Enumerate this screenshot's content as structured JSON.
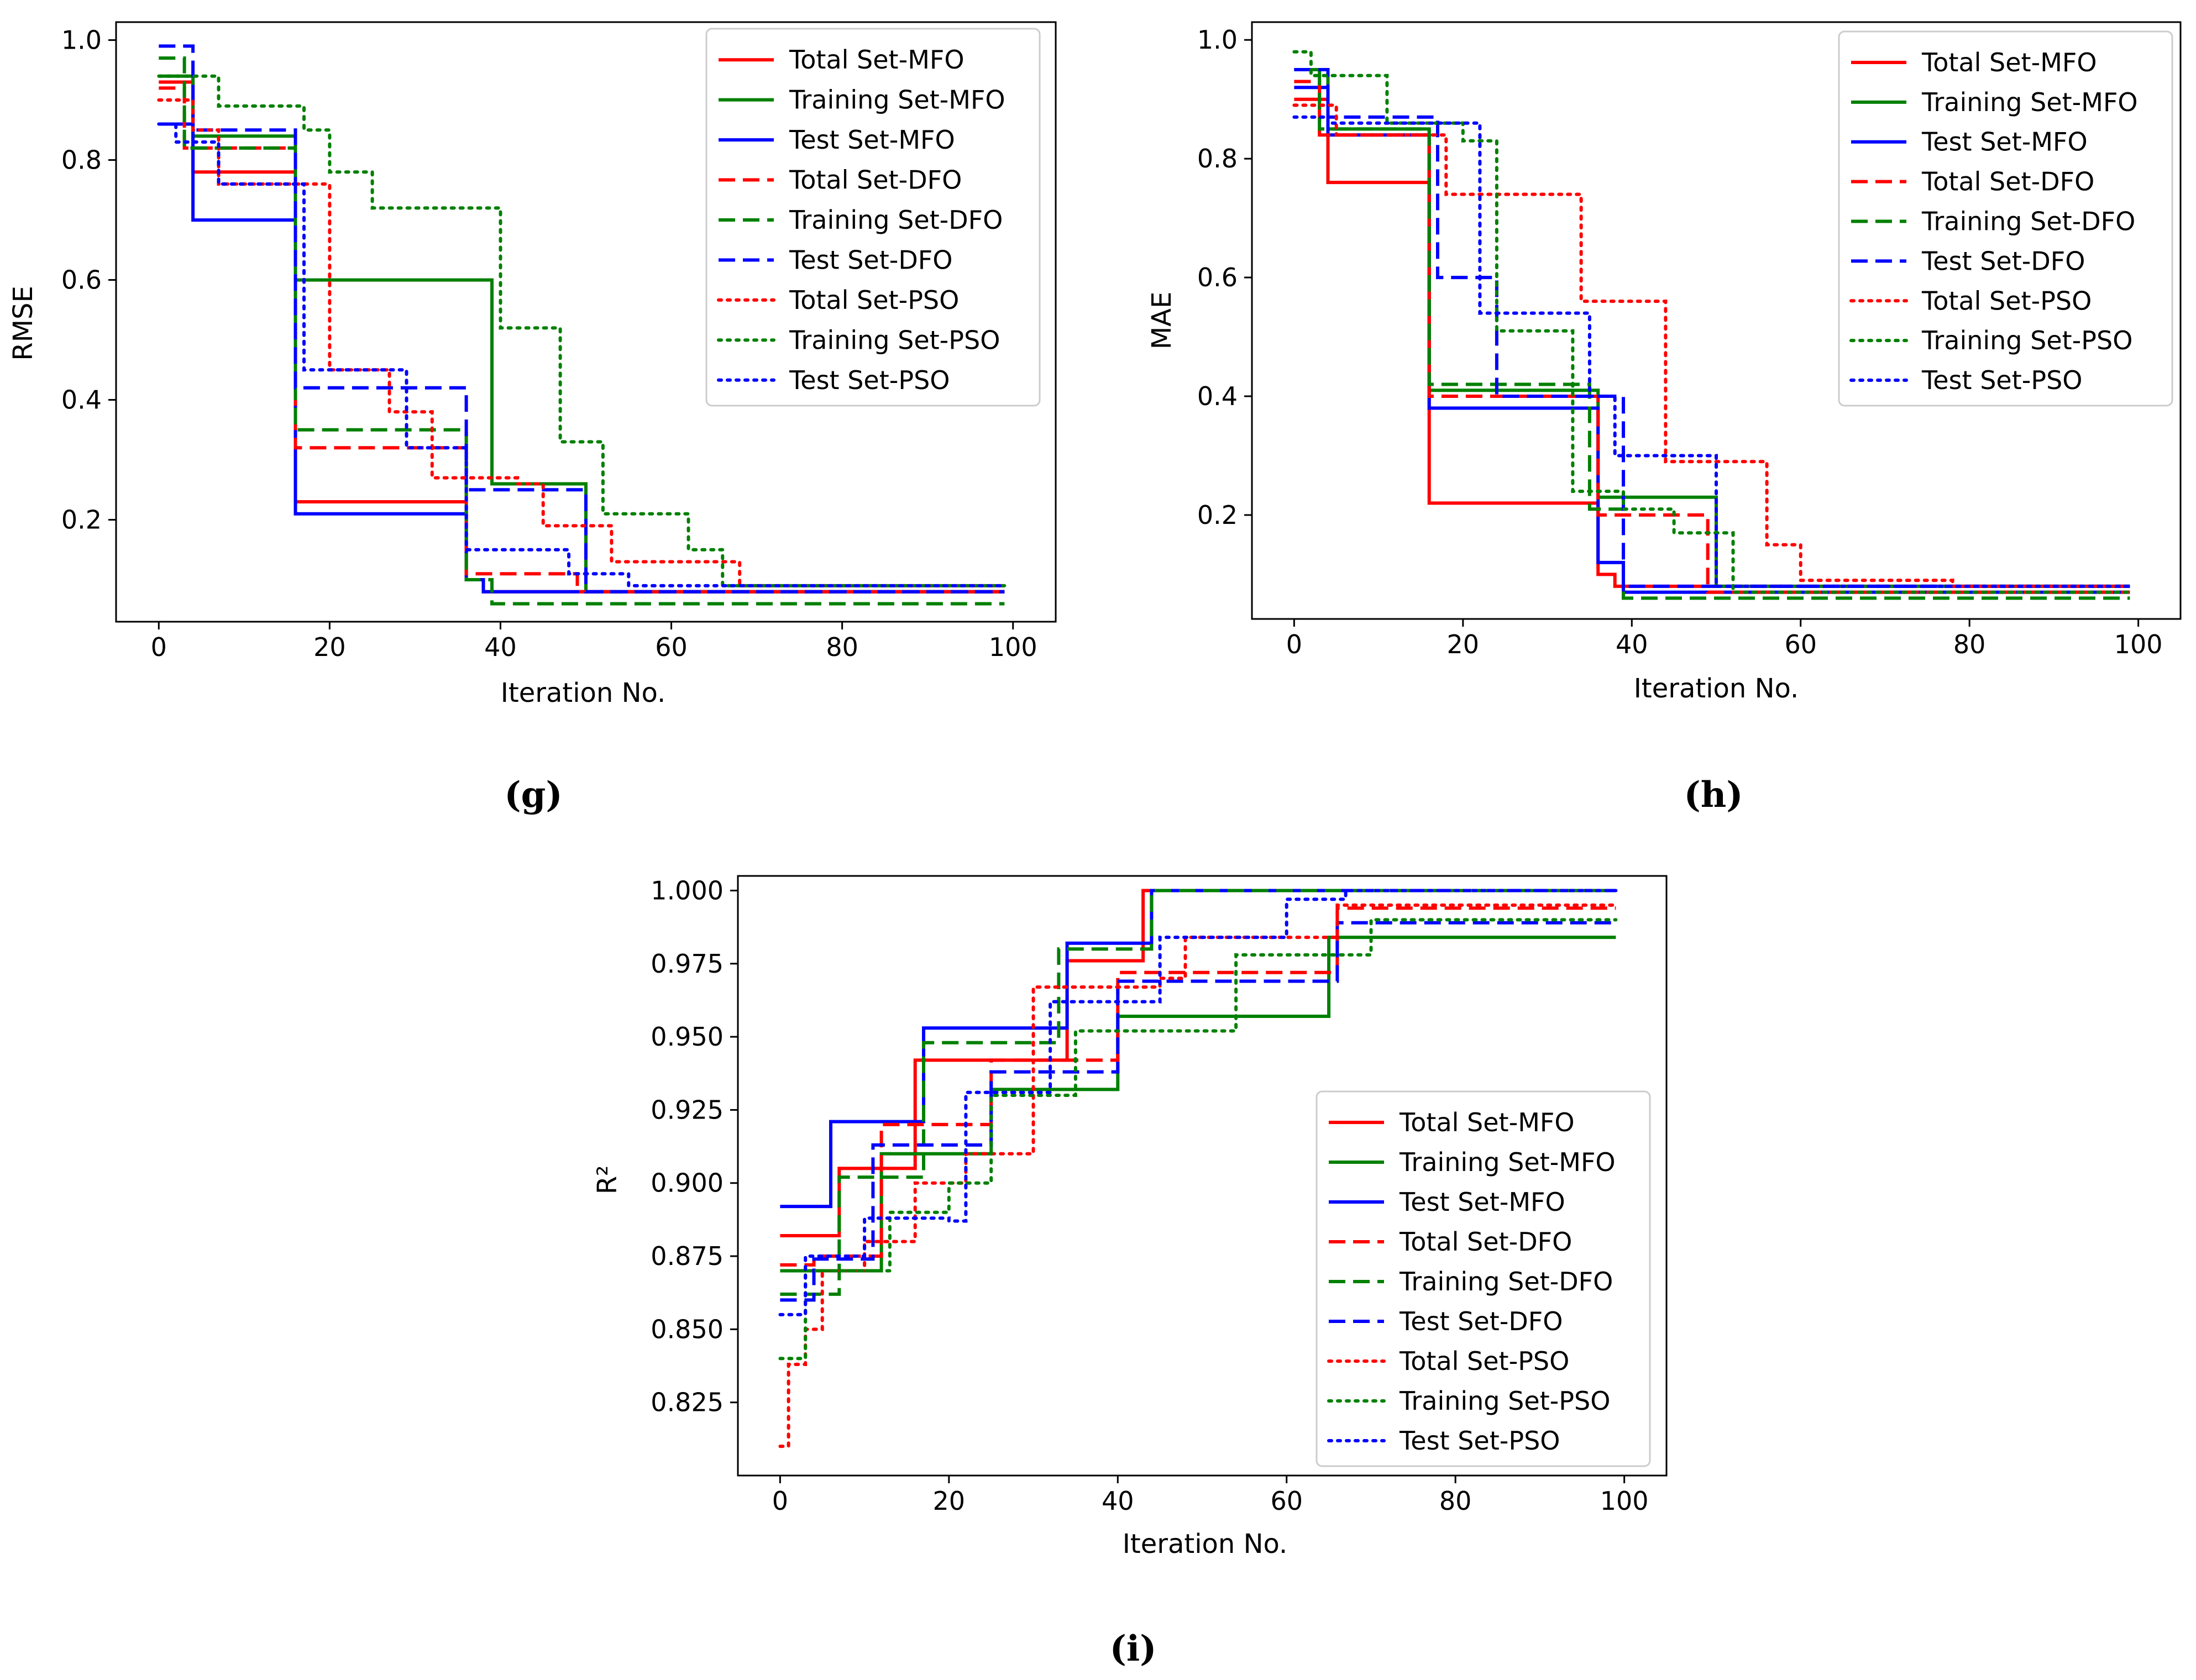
{
  "chart_data": [
    {
      "type": "line",
      "panel_label": "(g)",
      "ylabel": "RMSE",
      "xlabel": "Iteration No.",
      "xlim": [
        -5,
        105
      ],
      "ylim": [
        0.03,
        1.03
      ],
      "xticks": [
        0,
        20,
        40,
        60,
        80,
        100
      ],
      "yticks": [
        0.2,
        0.4,
        0.6,
        0.8,
        1.0
      ],
      "xtick_labels": [
        "0",
        "20",
        "40",
        "60",
        "80",
        "100"
      ],
      "ytick_labels": [
        "0.2",
        "0.4",
        "0.6",
        "0.8",
        "1.0"
      ],
      "legend_position": "top-right",
      "series": [
        {
          "name": "Total Set-MFO",
          "color": "#ff0000",
          "dash": "solid",
          "points": [
            [
              0,
              0.93
            ],
            [
              4,
              0.78
            ],
            [
              16,
              0.23
            ],
            [
              36,
              0.1
            ],
            [
              38,
              0.08
            ],
            [
              99,
              0.08
            ]
          ]
        },
        {
          "name": "Training Set-MFO",
          "color": "#008000",
          "dash": "solid",
          "points": [
            [
              0,
              0.94
            ],
            [
              4,
              0.84
            ],
            [
              16,
              0.6
            ],
            [
              39,
              0.26
            ],
            [
              50,
              0.08
            ],
            [
              99,
              0.08
            ]
          ]
        },
        {
          "name": "Test Set-MFO",
          "color": "#0000ff",
          "dash": "solid",
          "points": [
            [
              0,
              0.86
            ],
            [
              4,
              0.7
            ],
            [
              15,
              0.7
            ],
            [
              16,
              0.21
            ],
            [
              36,
              0.1
            ],
            [
              38,
              0.08
            ],
            [
              99,
              0.08
            ]
          ]
        },
        {
          "name": "Total Set-DFO",
          "color": "#ff0000",
          "dash": "dashed",
          "points": [
            [
              0,
              0.92
            ],
            [
              3,
              0.82
            ],
            [
              16,
              0.32
            ],
            [
              36,
              0.11
            ],
            [
              49,
              0.08
            ],
            [
              99,
              0.08
            ]
          ]
        },
        {
          "name": "Training Set-DFO",
          "color": "#008000",
          "dash": "dashed",
          "points": [
            [
              0,
              0.97
            ],
            [
              3,
              0.82
            ],
            [
              16,
              0.35
            ],
            [
              36,
              0.1
            ],
            [
              39,
              0.06
            ],
            [
              99,
              0.06
            ]
          ]
        },
        {
          "name": "Test Set-DFO",
          "color": "#0000ff",
          "dash": "dashed",
          "points": [
            [
              0,
              0.99
            ],
            [
              4,
              0.85
            ],
            [
              16,
              0.42
            ],
            [
              36,
              0.25
            ],
            [
              50,
              0.08
            ],
            [
              99,
              0.08
            ]
          ]
        },
        {
          "name": "Total Set-PSO",
          "color": "#ff0000",
          "dash": "dotted",
          "points": [
            [
              0,
              0.9
            ],
            [
              4,
              0.85
            ],
            [
              7,
              0.76
            ],
            [
              20,
              0.45
            ],
            [
              27,
              0.38
            ],
            [
              32,
              0.27
            ],
            [
              42,
              0.26
            ],
            [
              45,
              0.19
            ],
            [
              53,
              0.13
            ],
            [
              68,
              0.09
            ],
            [
              99,
              0.09
            ]
          ]
        },
        {
          "name": "Training Set-PSO",
          "color": "#008000",
          "dash": "dotted",
          "points": [
            [
              0,
              0.94
            ],
            [
              7,
              0.89
            ],
            [
              17,
              0.85
            ],
            [
              20,
              0.78
            ],
            [
              25,
              0.72
            ],
            [
              40,
              0.52
            ],
            [
              47,
              0.33
            ],
            [
              52,
              0.21
            ],
            [
              62,
              0.15
            ],
            [
              66,
              0.09
            ],
            [
              99,
              0.09
            ]
          ]
        },
        {
          "name": "Test Set-PSO",
          "color": "#0000ff",
          "dash": "dotted",
          "points": [
            [
              0,
              0.86
            ],
            [
              2,
              0.83
            ],
            [
              7,
              0.76
            ],
            [
              17,
              0.45
            ],
            [
              29,
              0.32
            ],
            [
              36,
              0.15
            ],
            [
              48,
              0.11
            ],
            [
              55,
              0.09
            ],
            [
              99,
              0.09
            ]
          ]
        }
      ]
    },
    {
      "type": "line",
      "panel_label": "(h)",
      "ylabel": "MAE",
      "xlabel": "Iteration No.",
      "xlim": [
        -5,
        105
      ],
      "ylim": [
        0.025,
        1.03
      ],
      "xticks": [
        0,
        20,
        40,
        60,
        80,
        100
      ],
      "yticks": [
        0.2,
        0.4,
        0.6,
        0.8,
        1.0
      ],
      "xtick_labels": [
        "0",
        "20",
        "40",
        "60",
        "80",
        "100"
      ],
      "ytick_labels": [
        "0.2",
        "0.4",
        "0.6",
        "0.8",
        "1.0"
      ],
      "legend_position": "top-right",
      "series": [
        {
          "name": "Total Set-MFO",
          "color": "#ff0000",
          "dash": "solid",
          "points": [
            [
              0,
              0.9
            ],
            [
              4,
              0.76
            ],
            [
              16,
              0.22
            ],
            [
              36,
              0.1
            ],
            [
              38,
              0.08
            ],
            [
              99,
              0.08
            ]
          ]
        },
        {
          "name": "Training Set-MFO",
          "color": "#008000",
          "dash": "solid",
          "points": [
            [
              0,
              0.95
            ],
            [
              4,
              0.85
            ],
            [
              16,
              0.41
            ],
            [
              36,
              0.23
            ],
            [
              50,
              0.08
            ],
            [
              99,
              0.08
            ]
          ]
        },
        {
          "name": "Test Set-MFO",
          "color": "#0000ff",
          "dash": "solid",
          "points": [
            [
              0,
              0.92
            ],
            [
              4,
              0.84
            ],
            [
              16,
              0.38
            ],
            [
              36,
              0.12
            ],
            [
              39,
              0.07
            ],
            [
              99,
              0.07
            ]
          ]
        },
        {
          "name": "Total Set-DFO",
          "color": "#ff0000",
          "dash": "dashed",
          "points": [
            [
              0,
              0.93
            ],
            [
              3,
              0.84
            ],
            [
              16,
              0.4
            ],
            [
              36,
              0.2
            ],
            [
              49,
              0.07
            ],
            [
              99,
              0.07
            ]
          ]
        },
        {
          "name": "Training Set-DFO",
          "color": "#008000",
          "dash": "dashed",
          "points": [
            [
              0,
              0.95
            ],
            [
              3,
              0.85
            ],
            [
              16,
              0.42
            ],
            [
              35,
              0.21
            ],
            [
              39,
              0.06
            ],
            [
              99,
              0.06
            ]
          ]
        },
        {
          "name": "Test Set-DFO",
          "color": "#0000ff",
          "dash": "dashed",
          "points": [
            [
              0,
              0.95
            ],
            [
              4,
              0.87
            ],
            [
              17,
              0.6
            ],
            [
              24,
              0.4
            ],
            [
              39,
              0.08
            ],
            [
              99,
              0.08
            ]
          ]
        },
        {
          "name": "Total Set-PSO",
          "color": "#ff0000",
          "dash": "dotted",
          "points": [
            [
              0,
              0.89
            ],
            [
              5,
              0.84
            ],
            [
              18,
              0.74
            ],
            [
              34,
              0.56
            ],
            [
              44,
              0.29
            ],
            [
              56,
              0.15
            ],
            [
              60,
              0.09
            ],
            [
              78,
              0.08
            ],
            [
              99,
              0.08
            ]
          ]
        },
        {
          "name": "Training Set-PSO",
          "color": "#008000",
          "dash": "dotted",
          "points": [
            [
              0,
              0.98
            ],
            [
              2,
              0.94
            ],
            [
              11,
              0.86
            ],
            [
              20,
              0.83
            ],
            [
              24,
              0.51
            ],
            [
              33,
              0.24
            ],
            [
              39,
              0.21
            ],
            [
              45,
              0.17
            ],
            [
              52,
              0.07
            ],
            [
              99,
              0.07
            ]
          ]
        },
        {
          "name": "Test Set-PSO",
          "color": "#0000ff",
          "dash": "dotted",
          "points": [
            [
              0,
              0.87
            ],
            [
              4,
              0.86
            ],
            [
              17,
              0.86
            ],
            [
              22,
              0.54
            ],
            [
              35,
              0.4
            ],
            [
              38,
              0.3
            ],
            [
              50,
              0.08
            ],
            [
              99,
              0.08
            ]
          ]
        }
      ]
    },
    {
      "type": "line",
      "panel_label": "(i)",
      "ylabel": "R²",
      "xlabel": "Iteration No.",
      "xlim": [
        -5,
        105
      ],
      "ylim": [
        0.8,
        1.005
      ],
      "xticks": [
        0,
        20,
        40,
        60,
        80,
        100
      ],
      "yticks": [
        0.825,
        0.85,
        0.875,
        0.9,
        0.925,
        0.95,
        0.975,
        1.0
      ],
      "xtick_labels": [
        "0",
        "20",
        "40",
        "60",
        "80",
        "100"
      ],
      "ytick_labels": [
        "0.825",
        "0.850",
        "0.875",
        "0.900",
        "0.925",
        "0.950",
        "0.975",
        "1.000"
      ],
      "legend_position": "center-right",
      "series": [
        {
          "name": "Total Set-MFO",
          "color": "#ff0000",
          "dash": "solid",
          "points": [
            [
              0,
              0.882
            ],
            [
              7,
              0.905
            ],
            [
              16,
              0.942
            ],
            [
              34,
              0.976
            ],
            [
              43,
              1.0
            ],
            [
              99,
              1.0
            ]
          ]
        },
        {
          "name": "Training Set-MFO",
          "color": "#008000",
          "dash": "solid",
          "points": [
            [
              0,
              0.87
            ],
            [
              12,
              0.91
            ],
            [
              25,
              0.932
            ],
            [
              40,
              0.957
            ],
            [
              65,
              0.984
            ],
            [
              99,
              0.984
            ]
          ]
        },
        {
          "name": "Test Set-MFO",
          "color": "#0000ff",
          "dash": "solid",
          "points": [
            [
              0,
              0.892
            ],
            [
              6,
              0.921
            ],
            [
              17,
              0.953
            ],
            [
              34,
              0.982
            ],
            [
              44,
              1.0
            ],
            [
              99,
              1.0
            ]
          ]
        },
        {
          "name": "Total Set-DFO",
          "color": "#ff0000",
          "dash": "dashed",
          "points": [
            [
              0,
              0.872
            ],
            [
              4,
              0.875
            ],
            [
              12,
              0.92
            ],
            [
              25,
              0.942
            ],
            [
              40,
              0.972
            ],
            [
              66,
              0.994
            ],
            [
              99,
              0.994
            ]
          ]
        },
        {
          "name": "Training Set-DFO",
          "color": "#008000",
          "dash": "dashed",
          "points": [
            [
              0,
              0.862
            ],
            [
              7,
              0.902
            ],
            [
              17,
              0.948
            ],
            [
              33,
              0.98
            ],
            [
              44,
              1.0
            ],
            [
              99,
              1.0
            ]
          ]
        },
        {
          "name": "Test Set-DFO",
          "color": "#0000ff",
          "dash": "dashed",
          "points": [
            [
              0,
              0.86
            ],
            [
              4,
              0.874
            ],
            [
              11,
              0.913
            ],
            [
              25,
              0.938
            ],
            [
              40,
              0.969
            ],
            [
              66,
              0.989
            ],
            [
              99,
              0.989
            ]
          ]
        },
        {
          "name": "Total Set-PSO",
          "color": "#ff0000",
          "dash": "dotted",
          "points": [
            [
              0,
              0.81
            ],
            [
              1,
              0.838
            ],
            [
              3,
              0.85
            ],
            [
              5,
              0.87
            ],
            [
              10,
              0.88
            ],
            [
              16,
              0.9
            ],
            [
              22,
              0.91
            ],
            [
              30,
              0.967
            ],
            [
              45,
              0.97
            ],
            [
              48,
              0.984
            ],
            [
              66,
              0.995
            ],
            [
              99,
              0.995
            ]
          ]
        },
        {
          "name": "Training Set-PSO",
          "color": "#008000",
          "dash": "dotted",
          "points": [
            [
              0,
              0.84
            ],
            [
              3,
              0.87
            ],
            [
              13,
              0.89
            ],
            [
              20,
              0.9
            ],
            [
              25,
              0.93
            ],
            [
              35,
              0.952
            ],
            [
              54,
              0.978
            ],
            [
              70,
              0.99
            ],
            [
              99,
              0.99
            ]
          ]
        },
        {
          "name": "Test Set-PSO",
          "color": "#0000ff",
          "dash": "dotted",
          "points": [
            [
              0,
              0.855
            ],
            [
              3,
              0.875
            ],
            [
              10,
              0.888
            ],
            [
              20,
              0.887
            ],
            [
              22,
              0.931
            ],
            [
              32,
              0.962
            ],
            [
              45,
              0.984
            ],
            [
              60,
              0.997
            ],
            [
              67,
              1.0
            ],
            [
              99,
              1.0
            ]
          ]
        }
      ]
    }
  ]
}
